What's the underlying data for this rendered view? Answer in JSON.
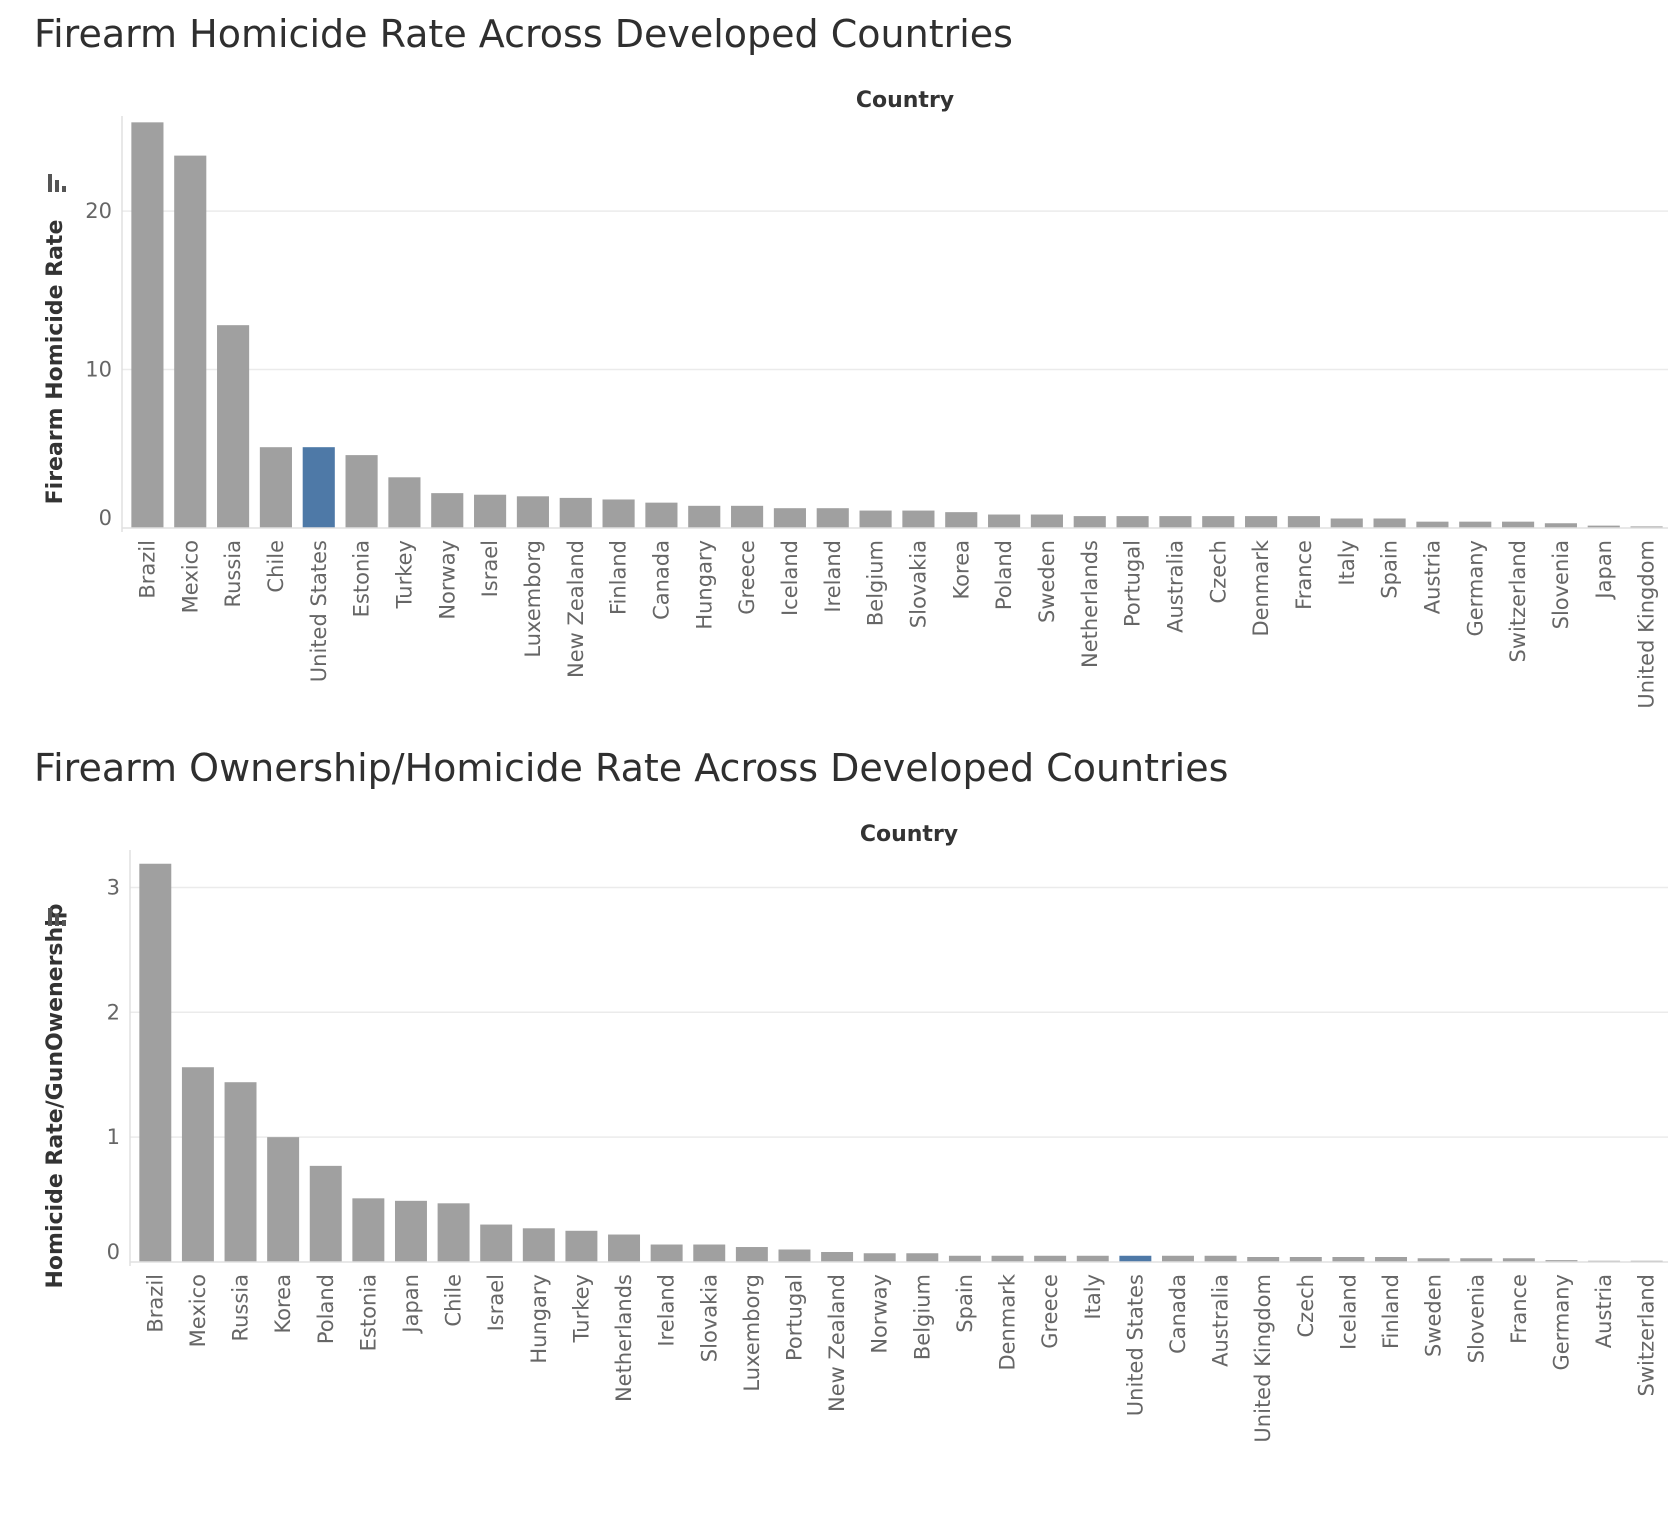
{
  "colors": {
    "default_bar": "#a0a0a0",
    "highlight_bar": "#4e79a7",
    "gridline": "#ebebeb",
    "axis": "#e0e0e0",
    "text": "#333333",
    "tick_text": "#666666"
  },
  "chart_data": [
    {
      "type": "bar",
      "title": "Firearm Homicide Rate Across Developed Countries",
      "x_header": "Country",
      "ylabel": "Firearm Homicide Rate",
      "ylim": [
        0,
        26
      ],
      "y_ticks": [
        0,
        10,
        20
      ],
      "grid": true,
      "highlight": "United States",
      "categories": [
        "Brazil",
        "Mexico",
        "Russia",
        "Chile",
        "United States",
        "Estonia",
        "Turkey",
        "Norway",
        "Israel",
        "Luxemborg",
        "New Zealand",
        "Finland",
        "Canada",
        "Hungary",
        "Greece",
        "Iceland",
        "Ireland",
        "Belgium",
        "Slovakia",
        "Korea",
        "Poland",
        "Sweden",
        "Netherlands",
        "Portugal",
        "Australia",
        "Czech",
        "Denmark",
        "France",
        "Italy",
        "Spain",
        "Austria",
        "Germany",
        "Switzerland",
        "Slovenia",
        "Japan",
        "United Kingdom"
      ],
      "values": [
        25.6,
        23.5,
        12.8,
        5.1,
        5.1,
        4.6,
        3.2,
        2.2,
        2.1,
        2.0,
        1.9,
        1.8,
        1.6,
        1.4,
        1.4,
        1.25,
        1.25,
        1.1,
        1.1,
        1.0,
        0.85,
        0.85,
        0.75,
        0.75,
        0.75,
        0.75,
        0.75,
        0.75,
        0.6,
        0.6,
        0.4,
        0.4,
        0.4,
        0.3,
        0.15,
        0.1
      ]
    },
    {
      "type": "bar",
      "title": "Firearm Ownership/Homicide Rate Across Developed Countries",
      "x_header": "Country",
      "ylabel": "Homicide Rate/GunOwenership",
      "ylim": [
        0,
        3.3
      ],
      "y_ticks": [
        0,
        1,
        2,
        3
      ],
      "grid": true,
      "highlight": "United States",
      "categories": [
        "Brazil",
        "Mexico",
        "Russia",
        "Korea",
        "Poland",
        "Estonia",
        "Japan",
        "Chile",
        "Israel",
        "Hungary",
        "Turkey",
        "Netherlands",
        "Ireland",
        "Slovakia",
        "Luxemborg",
        "Portugal",
        "New Zealand",
        "Norway",
        "Belgium",
        "Spain",
        "Denmark",
        "Greece",
        "Italy",
        "United States",
        "Canada",
        "Australia",
        "United Kingdom",
        "Czech",
        "Iceland",
        "Finland",
        "Sweden",
        "Slovenia",
        "France",
        "Germany",
        "Austria",
        "Switzerland"
      ],
      "values": [
        3.19,
        1.56,
        1.44,
        1.0,
        0.77,
        0.51,
        0.49,
        0.47,
        0.3,
        0.27,
        0.25,
        0.22,
        0.14,
        0.14,
        0.12,
        0.1,
        0.08,
        0.07,
        0.07,
        0.05,
        0.05,
        0.05,
        0.05,
        0.05,
        0.05,
        0.05,
        0.04,
        0.04,
        0.04,
        0.04,
        0.03,
        0.03,
        0.03,
        0.015,
        0.01,
        0.01
      ]
    }
  ]
}
